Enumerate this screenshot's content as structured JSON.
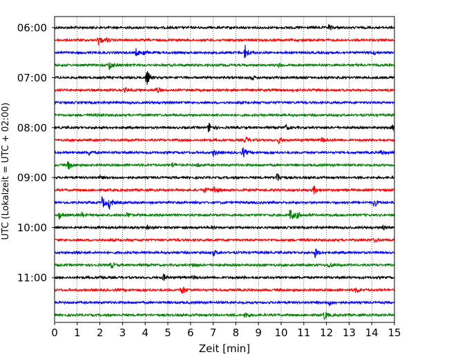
{
  "chart_data": {
    "type": "line",
    "title": "",
    "xlabel": "Zeit  [min]",
    "ylabel": "UTC (Lokalzeit = UTC + 02:00)",
    "xlim": [
      0,
      15
    ],
    "x_ticks": [
      "0",
      "1",
      "2",
      "3",
      "4",
      "5",
      "6",
      "7",
      "8",
      "9",
      "10",
      "11",
      "12",
      "13",
      "14",
      "15"
    ],
    "y_tick_labels": [
      "06:00",
      "07:00",
      "08:00",
      "09:00",
      "10:00",
      "11:00"
    ],
    "grid": "vertical dotted at each minute",
    "trace_interval_min": 15,
    "start_time": "06:00",
    "colors": [
      "#000000",
      "#ff0000",
      "#0000ff",
      "#008000"
    ],
    "series": [
      {
        "start": "06:00",
        "color": "#000000",
        "events": [
          {
            "t": 12.1,
            "amp": 0.5
          }
        ]
      },
      {
        "start": "06:15",
        "color": "#ff0000",
        "events": [
          {
            "t": 1.9,
            "amp": 1.0
          },
          {
            "t": 2.3,
            "amp": 0.4
          }
        ]
      },
      {
        "start": "06:30",
        "color": "#0000ff",
        "events": [
          {
            "t": 3.6,
            "amp": 0.6
          },
          {
            "t": 3.9,
            "amp": 0.5
          },
          {
            "t": 8.4,
            "amp": 1.3
          },
          {
            "t": 14.1,
            "amp": 0.3
          }
        ]
      },
      {
        "start": "06:45",
        "color": "#008000",
        "events": [
          {
            "t": 2.4,
            "amp": 0.9
          },
          {
            "t": 9.9,
            "amp": 0.3
          }
        ]
      },
      {
        "start": "07:00",
        "color": "#000000",
        "events": [
          {
            "t": 4.05,
            "amp": 1.5
          },
          {
            "t": 8.7,
            "amp": 0.3
          }
        ]
      },
      {
        "start": "07:15",
        "color": "#ff0000",
        "events": [
          {
            "t": 4.5,
            "amp": 0.5
          },
          {
            "t": 3.1,
            "amp": 0.3
          }
        ]
      },
      {
        "start": "07:30",
        "color": "#0000ff",
        "events": []
      },
      {
        "start": "07:45",
        "color": "#008000",
        "events": [
          {
            "t": 1.9,
            "amp": 0.2
          }
        ]
      },
      {
        "start": "08:00",
        "color": "#000000",
        "events": [
          {
            "t": 6.8,
            "amp": 0.9
          },
          {
            "t": 10.2,
            "amp": 0.4
          },
          {
            "t": 14.9,
            "amp": 0.4
          }
        ]
      },
      {
        "start": "08:15",
        "color": "#ff0000",
        "events": [
          {
            "t": 8.4,
            "amp": 0.6
          },
          {
            "t": 9.9,
            "amp": 0.5
          },
          {
            "t": 11.8,
            "amp": 0.4
          }
        ]
      },
      {
        "start": "08:30",
        "color": "#0000ff",
        "events": [
          {
            "t": 1.5,
            "amp": 0.4
          },
          {
            "t": 7.0,
            "amp": 0.5
          },
          {
            "t": 8.3,
            "amp": 0.9
          },
          {
            "t": 14.4,
            "amp": 0.4
          }
        ]
      },
      {
        "start": "08:45",
        "color": "#008000",
        "events": [
          {
            "t": 0.6,
            "amp": 0.8
          },
          {
            "t": 5.2,
            "amp": 0.4
          },
          {
            "t": 6.3,
            "amp": 0.3
          }
        ]
      },
      {
        "start": "09:00",
        "color": "#000000",
        "events": [
          {
            "t": 9.8,
            "amp": 0.9
          },
          {
            "t": 2.0,
            "amp": 0.3
          }
        ]
      },
      {
        "start": "09:15",
        "color": "#ff0000",
        "events": [
          {
            "t": 6.6,
            "amp": 0.5
          },
          {
            "t": 7.0,
            "amp": 0.9
          },
          {
            "t": 11.4,
            "amp": 0.9
          }
        ]
      },
      {
        "start": "09:30",
        "color": "#0000ff",
        "events": [
          {
            "t": 2.1,
            "amp": 1.0
          },
          {
            "t": 2.4,
            "amp": 1.1
          },
          {
            "t": 14.1,
            "amp": 0.7
          }
        ]
      },
      {
        "start": "09:45",
        "color": "#008000",
        "events": [
          {
            "t": 0.2,
            "amp": 0.6
          },
          {
            "t": 1.2,
            "amp": 0.4
          },
          {
            "t": 3.2,
            "amp": 0.4
          },
          {
            "t": 10.4,
            "amp": 1.2
          },
          {
            "t": 10.7,
            "amp": 0.5
          }
        ]
      },
      {
        "start": "10:00",
        "color": "#000000",
        "events": [
          {
            "t": 4.1,
            "amp": 0.3
          },
          {
            "t": 6.9,
            "amp": 0.3
          },
          {
            "t": 14.5,
            "amp": 0.3
          }
        ]
      },
      {
        "start": "10:15",
        "color": "#ff0000",
        "events": [
          {
            "t": 14.1,
            "amp": 0.3
          }
        ]
      },
      {
        "start": "10:30",
        "color": "#0000ff",
        "events": [
          {
            "t": 7.0,
            "amp": 0.5
          },
          {
            "t": 11.5,
            "amp": 0.8
          },
          {
            "t": 0.9,
            "amp": 0.3
          }
        ]
      },
      {
        "start": "10:45",
        "color": "#008000",
        "events": [
          {
            "t": 2.5,
            "amp": 0.5
          },
          {
            "t": 6.1,
            "amp": 0.3
          },
          {
            "t": 12.1,
            "amp": 0.5
          }
        ]
      },
      {
        "start": "11:00",
        "color": "#000000",
        "events": [
          {
            "t": 4.8,
            "amp": 0.6
          },
          {
            "t": 6.1,
            "amp": 0.3
          },
          {
            "t": 2.0,
            "amp": 0.3
          }
        ]
      },
      {
        "start": "11:15",
        "color": "#ff0000",
        "events": [
          {
            "t": 5.6,
            "amp": 0.9
          },
          {
            "t": 13.3,
            "amp": 0.5
          }
        ]
      },
      {
        "start": "11:30",
        "color": "#0000ff",
        "events": [
          {
            "t": 12.1,
            "amp": 0.5
          }
        ]
      },
      {
        "start": "11:45",
        "color": "#008000",
        "events": [
          {
            "t": 8.4,
            "amp": 0.6
          },
          {
            "t": 11.9,
            "amp": 0.8
          }
        ]
      }
    ]
  }
}
